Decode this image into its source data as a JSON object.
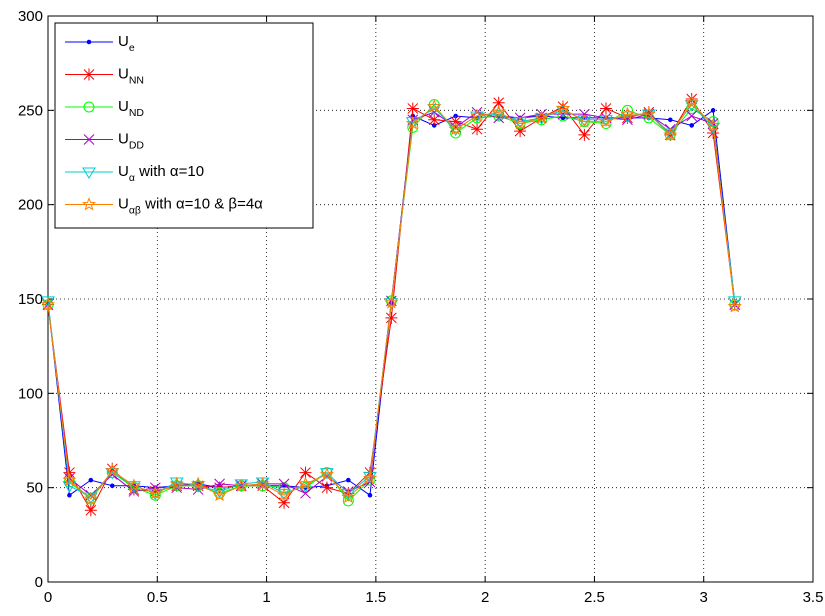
{
  "chart_data": {
    "type": "line",
    "title": "",
    "xlabel": "",
    "ylabel": "",
    "xlim": [
      0,
      3.5
    ],
    "ylim": [
      0,
      300
    ],
    "xticks": [
      0,
      0.5,
      1,
      1.5,
      2,
      2.5,
      3,
      3.5
    ],
    "yticks": [
      0,
      50,
      100,
      150,
      200,
      250,
      300
    ],
    "xtick_labels": [
      "0",
      "0.5",
      "1",
      "1.5",
      "2",
      "2.5",
      "3",
      "3.5"
    ],
    "ytick_labels": [
      "0",
      "50",
      "100",
      "150",
      "200",
      "250",
      "300"
    ],
    "grid": true,
    "legend_position": "top-left",
    "x": [
      0,
      0.098,
      0.196,
      0.294,
      0.393,
      0.491,
      0.589,
      0.687,
      0.785,
      0.884,
      0.982,
      1.08,
      1.178,
      1.276,
      1.374,
      1.473,
      1.571,
      1.669,
      1.767,
      1.865,
      1.963,
      2.062,
      2.16,
      2.258,
      2.356,
      2.454,
      2.553,
      2.651,
      2.749,
      2.847,
      2.945,
      3.043,
      3.142
    ],
    "series": [
      {
        "legend": {
          "main": "U",
          "sub": "e",
          "suffix": ""
        },
        "color": "#0000ff",
        "marker": "dot",
        "values": [
          148,
          46,
          54,
          51,
          51,
          50,
          51,
          52,
          50,
          51,
          51,
          51,
          50,
          51,
          54,
          46,
          148,
          247,
          242,
          247,
          246,
          247,
          246,
          247,
          246,
          246,
          246,
          246,
          246,
          245,
          242,
          250,
          148
        ]
      },
      {
        "legend": {
          "main": "U",
          "sub": "NN",
          "suffix": ""
        },
        "color": "#ff0000",
        "marker": "asterisk",
        "values": [
          147,
          58,
          38,
          60,
          49,
          48,
          51,
          51,
          50,
          51,
          51,
          42,
          58,
          50,
          47,
          58,
          140,
          251,
          245,
          244,
          240,
          254,
          239,
          246,
          252,
          237,
          251,
          246,
          249,
          237,
          256,
          238,
          147
        ]
      },
      {
        "legend": {
          "main": "U",
          "sub": "ND",
          "suffix": ""
        },
        "color": "#00ff00",
        "marker": "circle",
        "values": [
          147,
          53,
          44,
          58,
          50,
          46,
          51,
          51,
          47,
          51,
          51,
          50,
          50,
          58,
          43,
          54,
          149,
          241,
          253,
          238,
          246,
          247,
          243,
          245,
          247,
          244,
          243,
          250,
          246,
          237,
          251,
          244,
          147
        ]
      },
      {
        "legend": {
          "main": "U",
          "sub": "DD",
          "suffix": ""
        },
        "color": "#aa00cc",
        "marker": "x",
        "values": [
          147,
          55,
          46,
          57,
          48,
          50,
          50,
          49,
          52,
          51,
          52,
          52,
          47,
          56,
          48,
          53,
          149,
          245,
          249,
          241,
          249,
          246,
          246,
          248,
          248,
          248,
          246,
          245,
          248,
          240,
          247,
          243,
          147
        ]
      },
      {
        "legend": {
          "main": "U",
          "sub": "α",
          "suffix": " with α=10"
        },
        "color": "#00cccc",
        "marker": "triangle",
        "values": [
          149,
          51,
          45,
          58,
          51,
          47,
          53,
          51,
          48,
          52,
          53,
          47,
          51,
          58,
          47,
          56,
          148,
          244,
          251,
          240,
          247,
          248,
          244,
          246,
          250,
          245,
          245,
          247,
          248,
          238,
          253,
          241,
          149
        ]
      },
      {
        "legend": {
          "main": "U",
          "sub": "αβ",
          "suffix": " with α=10 & β=4α"
        },
        "color": "#ff8000",
        "marker": "star",
        "values": [
          147,
          54,
          44,
          59,
          51,
          47,
          52,
          52,
          46,
          51,
          52,
          46,
          52,
          57,
          45,
          55,
          148,
          243,
          252,
          240,
          247,
          249,
          243,
          246,
          251,
          244,
          244,
          248,
          248,
          237,
          254,
          242,
          146
        ]
      }
    ]
  }
}
